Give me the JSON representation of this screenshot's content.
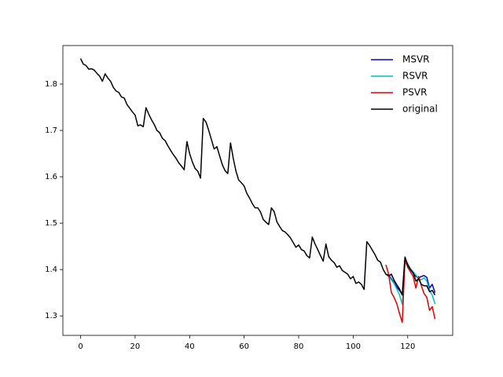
{
  "chart_data": {
    "type": "line",
    "xlim": [
      -6.5,
      136.5
    ],
    "ylim": [
      1.258,
      1.883
    ],
    "xticks": [
      0,
      20,
      40,
      60,
      80,
      100,
      120
    ],
    "yticks": [
      1.3,
      1.4,
      1.5,
      1.6,
      1.7,
      1.8
    ],
    "legend": "upper right",
    "series": [
      {
        "name": "MSVR",
        "color": "#0000cd",
        "x": [
          112,
          113,
          114,
          115,
          116,
          117,
          118,
          119,
          120,
          121,
          122,
          123,
          124,
          125,
          126,
          127,
          128,
          129,
          130
        ],
        "values": [
          1.39,
          1.388,
          1.38,
          1.372,
          1.362,
          1.355,
          1.346,
          1.425,
          1.41,
          1.4,
          1.392,
          1.385,
          1.382,
          1.385,
          1.387,
          1.383,
          1.36,
          1.368,
          1.35
        ]
      },
      {
        "name": "RSVR",
        "color": "#00bfbf",
        "x": [
          112,
          113,
          114,
          115,
          116,
          117,
          118,
          119,
          120,
          121,
          122,
          123,
          124,
          125,
          126,
          127,
          128,
          129,
          130
        ],
        "values": [
          1.39,
          1.386,
          1.378,
          1.37,
          1.358,
          1.345,
          1.325,
          1.42,
          1.413,
          1.402,
          1.395,
          1.388,
          1.38,
          1.378,
          1.382,
          1.375,
          1.355,
          1.345,
          1.326
        ]
      },
      {
        "name": "PSVR",
        "color": "#e00000",
        "x": [
          112,
          113,
          114,
          115,
          116,
          117,
          118,
          119,
          120,
          121,
          122,
          123,
          124,
          125,
          126,
          127,
          128,
          129,
          130
        ],
        "values": [
          1.41,
          1.39,
          1.35,
          1.34,
          1.326,
          1.305,
          1.286,
          1.42,
          1.405,
          1.395,
          1.385,
          1.36,
          1.385,
          1.365,
          1.348,
          1.34,
          1.312,
          1.32,
          1.293
        ]
      },
      {
        "name": "original",
        "color": "#000000",
        "x": [
          0,
          1,
          2,
          3,
          4,
          5,
          6,
          7,
          8,
          9,
          10,
          11,
          12,
          13,
          14,
          15,
          16,
          17,
          18,
          19,
          20,
          21,
          22,
          23,
          24,
          25,
          26,
          27,
          28,
          29,
          30,
          31,
          32,
          33,
          34,
          35,
          36,
          37,
          38,
          39,
          40,
          41,
          42,
          43,
          44,
          45,
          46,
          47,
          48,
          49,
          50,
          51,
          52,
          53,
          54,
          55,
          56,
          57,
          58,
          59,
          60,
          61,
          62,
          63,
          64,
          65,
          66,
          67,
          68,
          69,
          70,
          71,
          72,
          73,
          74,
          75,
          76,
          77,
          78,
          79,
          80,
          81,
          82,
          83,
          84,
          85,
          86,
          87,
          88,
          89,
          90,
          91,
          92,
          93,
          94,
          95,
          96,
          97,
          98,
          99,
          100,
          101,
          102,
          103,
          104,
          105,
          106,
          107,
          108,
          109,
          110,
          111,
          112,
          113,
          114,
          115,
          116,
          117,
          118,
          119,
          120,
          121,
          122,
          123,
          124,
          125,
          126,
          127,
          128,
          129,
          130
        ],
        "values": [
          1.855,
          1.843,
          1.84,
          1.832,
          1.833,
          1.83,
          1.823,
          1.817,
          1.806,
          1.822,
          1.813,
          1.806,
          1.793,
          1.785,
          1.782,
          1.772,
          1.77,
          1.756,
          1.748,
          1.74,
          1.733,
          1.71,
          1.712,
          1.708,
          1.749,
          1.735,
          1.723,
          1.713,
          1.7,
          1.695,
          1.683,
          1.678,
          1.667,
          1.657,
          1.648,
          1.64,
          1.63,
          1.623,
          1.615,
          1.676,
          1.65,
          1.632,
          1.618,
          1.612,
          1.597,
          1.726,
          1.718,
          1.7,
          1.68,
          1.66,
          1.665,
          1.645,
          1.626,
          1.613,
          1.607,
          1.673,
          1.64,
          1.612,
          1.593,
          1.587,
          1.58,
          1.564,
          1.554,
          1.542,
          1.533,
          1.533,
          1.524,
          1.508,
          1.502,
          1.497,
          1.533,
          1.525,
          1.503,
          1.493,
          1.484,
          1.481,
          1.475,
          1.468,
          1.458,
          1.448,
          1.453,
          1.443,
          1.44,
          1.43,
          1.425,
          1.47,
          1.455,
          1.443,
          1.43,
          1.418,
          1.455,
          1.428,
          1.42,
          1.415,
          1.405,
          1.408,
          1.398,
          1.394,
          1.39,
          1.38,
          1.385,
          1.37,
          1.373,
          1.368,
          1.357,
          1.46,
          1.452,
          1.442,
          1.432,
          1.42,
          1.416,
          1.4,
          1.39,
          1.386,
          1.39,
          1.377,
          1.367,
          1.358,
          1.345,
          1.427,
          1.41,
          1.4,
          1.393,
          1.375,
          1.38,
          1.368,
          1.365,
          1.365,
          1.352,
          1.355,
          1.345
        ]
      }
    ]
  }
}
